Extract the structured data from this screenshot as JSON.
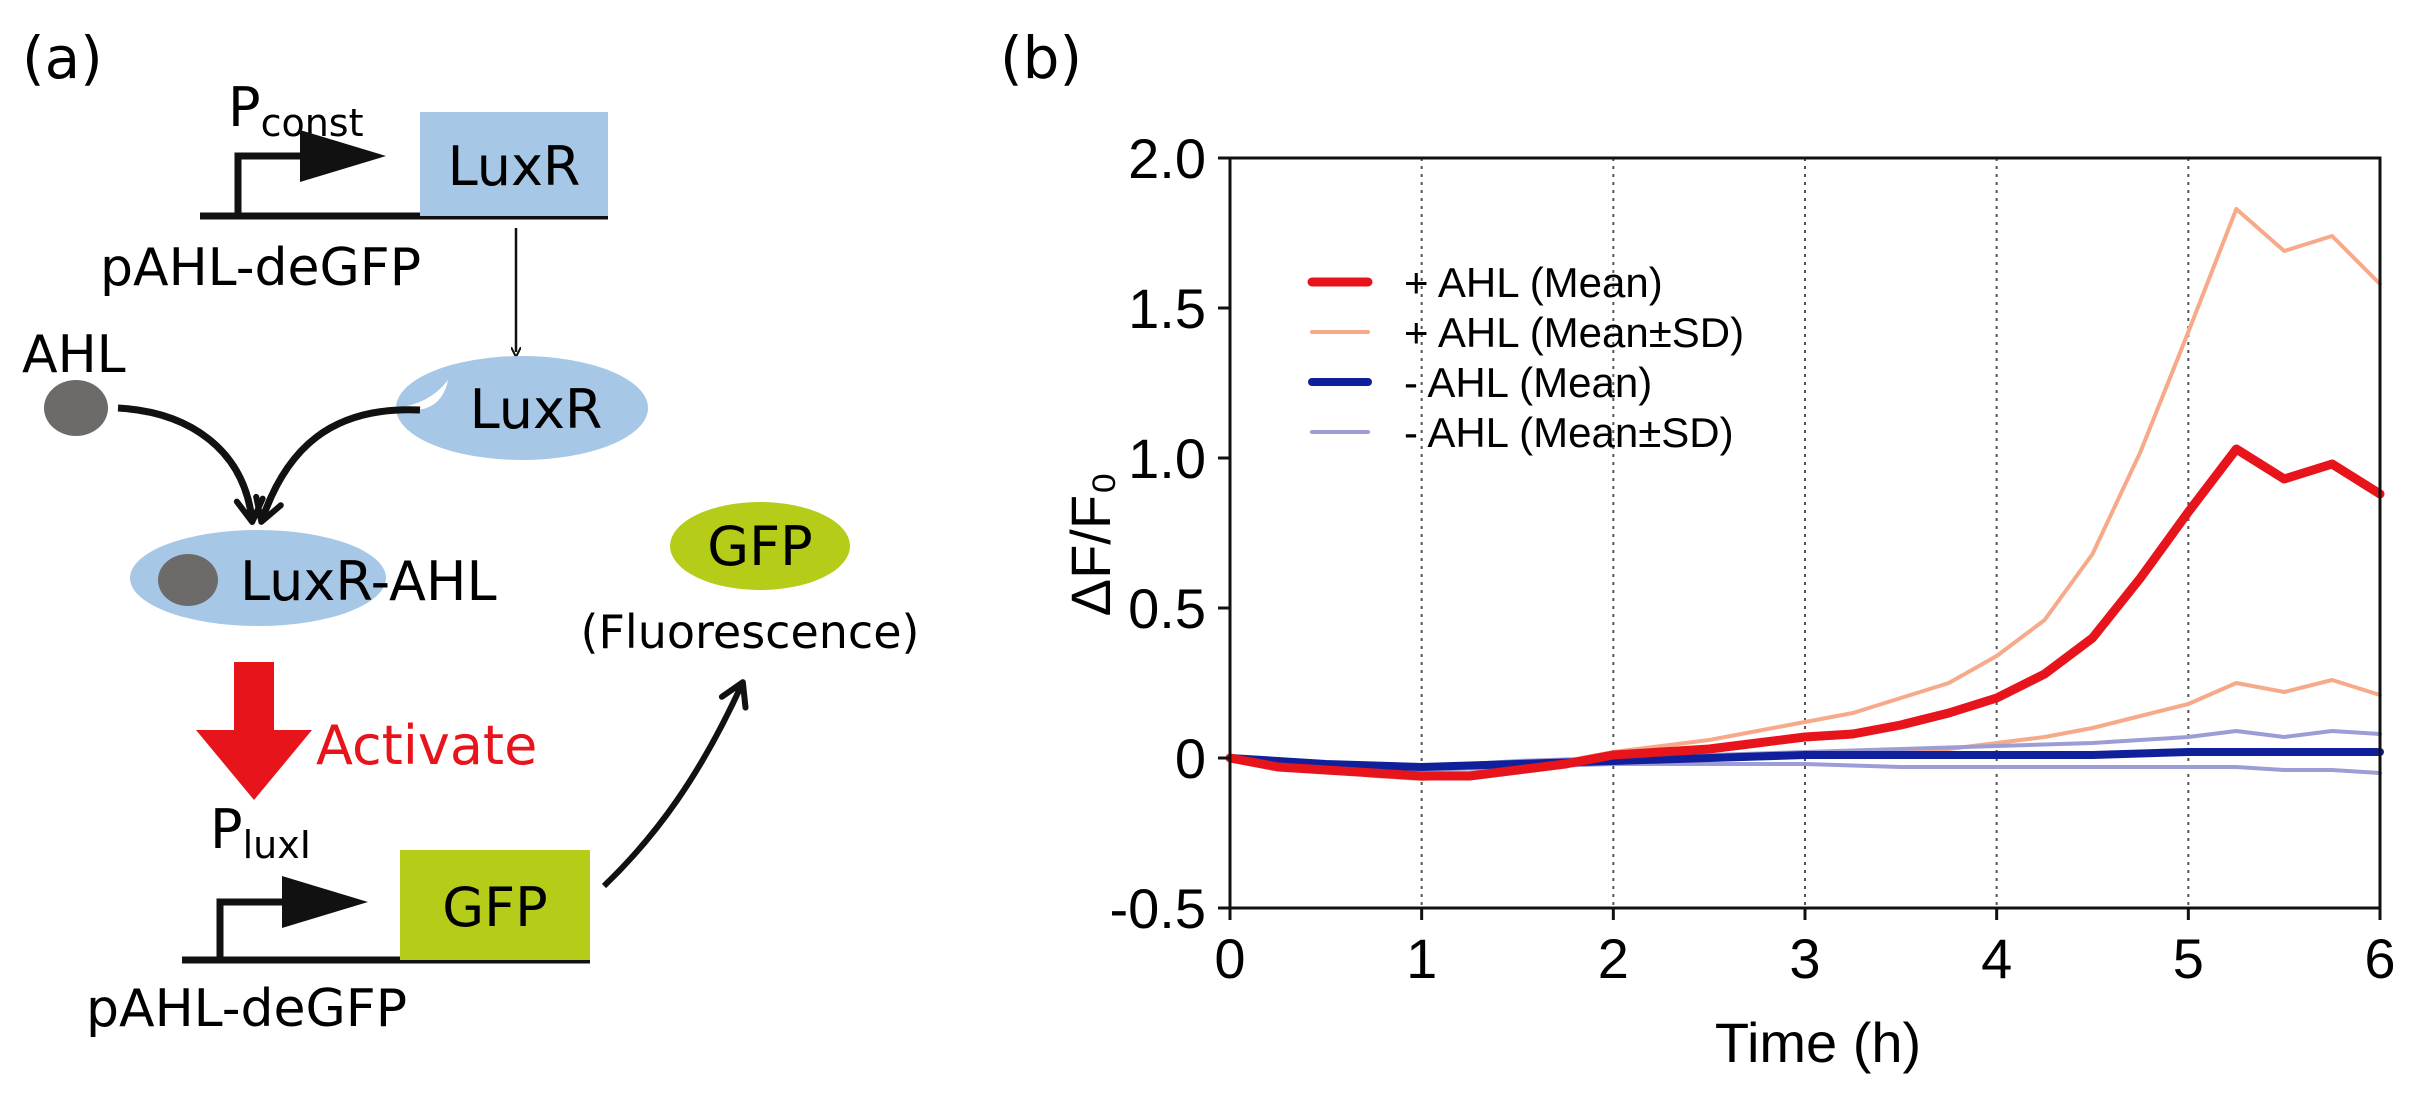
{
  "panel_a": {
    "label": "(a)",
    "top_promoter": {
      "main": "P",
      "sub": "const"
    },
    "top_gene": "LuxR",
    "top_plasmid": "pAHL-deGFP",
    "ahl": "AHL",
    "luxr_protein": "LuxR",
    "complex": "LuxR-AHL",
    "activate": "Activate",
    "bottom_promoter": {
      "main": "P",
      "sub": "luxI"
    },
    "bottom_gene": "GFP",
    "bottom_plasmid": "pAHL-deGFP",
    "gfp_protein": "GFP",
    "fluorescence": "(Fluorescence)",
    "colors": {
      "luxr": "#a7c7e7",
      "gfp": "#b5cc18",
      "ahl": "#6d6a6a",
      "activate": "#e8141c"
    }
  },
  "chart_data": {
    "type": "line",
    "panel_label": "(b)",
    "title": "",
    "xlabel": "Time (h)",
    "ylabel": "ΔF/F₀",
    "xlim": [
      0,
      6
    ],
    "ylim": [
      -0.5,
      2.0
    ],
    "xticks": [
      0,
      1,
      2,
      3,
      4,
      5,
      6
    ],
    "xtick_labels": [
      "0",
      "1",
      "2",
      "3",
      "4",
      "5",
      "6"
    ],
    "yticks": [
      -0.5,
      0,
      0.5,
      1.0,
      1.5,
      2.0
    ],
    "ytick_labels": [
      "-0.5",
      "0",
      "0.5",
      "1.0",
      "1.5",
      "2.0"
    ],
    "vgrid": [
      1,
      2,
      3,
      4,
      5
    ],
    "legend_position": "upper-left",
    "series": [
      {
        "name": "+ AHL (Mean±SD)",
        "kind": "upper",
        "color": "#f6aa8a",
        "width": 4,
        "x": [
          0,
          0.25,
          0.5,
          0.75,
          1,
          1.25,
          1.5,
          1.75,
          2,
          2.25,
          2.5,
          2.75,
          3,
          3.25,
          3.5,
          3.75,
          4,
          4.25,
          4.5,
          4.75,
          5,
          5.25,
          5.5,
          5.75,
          6
        ],
        "y": [
          0,
          -0.03,
          -0.04,
          -0.05,
          -0.05,
          -0.05,
          -0.03,
          -0.01,
          0.02,
          0.04,
          0.06,
          0.09,
          0.12,
          0.15,
          0.2,
          0.25,
          0.34,
          0.46,
          0.68,
          1.02,
          1.42,
          1.83,
          1.69,
          1.74,
          1.58
        ]
      },
      {
        "name": "+ AHL (Mean±SD)",
        "kind": "lower",
        "color": "#f6aa8a",
        "width": 4,
        "x": [
          0,
          0.25,
          0.5,
          0.75,
          1,
          1.25,
          1.5,
          1.75,
          2,
          2.25,
          2.5,
          2.75,
          3,
          3.25,
          3.5,
          3.75,
          4,
          4.25,
          4.5,
          4.75,
          5,
          5.25,
          5.5,
          5.75,
          6
        ],
        "y": [
          0,
          -0.03,
          -0.04,
          -0.06,
          -0.07,
          -0.06,
          -0.04,
          -0.02,
          0,
          0,
          0.01,
          0.01,
          0.01,
          0.02,
          0.02,
          0.03,
          0.05,
          0.07,
          0.1,
          0.14,
          0.18,
          0.25,
          0.22,
          0.26,
          0.21
        ]
      },
      {
        "name": "- AHL (Mean±SD)",
        "kind": "upper",
        "color": "#9c9cd6",
        "width": 4,
        "x": [
          0,
          0.5,
          1,
          1.5,
          2,
          2.5,
          3,
          3.5,
          4,
          4.5,
          5,
          5.25,
          5.5,
          5.75,
          6
        ],
        "y": [
          0,
          -0.02,
          -0.03,
          -0.01,
          0,
          0.01,
          0.02,
          0.03,
          0.04,
          0.05,
          0.07,
          0.09,
          0.07,
          0.09,
          0.08
        ]
      },
      {
        "name": "- AHL (Mean±SD)",
        "kind": "lower",
        "color": "#9c9cd6",
        "width": 4,
        "x": [
          0,
          0.5,
          1,
          1.5,
          2,
          2.5,
          3,
          3.5,
          4,
          4.5,
          5,
          5.25,
          5.5,
          5.75,
          6
        ],
        "y": [
          0,
          -0.02,
          -0.04,
          -0.03,
          -0.02,
          -0.02,
          -0.02,
          -0.03,
          -0.03,
          -0.03,
          -0.03,
          -0.03,
          -0.04,
          -0.04,
          -0.05
        ]
      },
      {
        "name": "- AHL (Mean)",
        "kind": "mean",
        "color": "#10209a",
        "width": 8,
        "x": [
          0,
          0.5,
          1,
          1.5,
          2,
          2.5,
          3,
          3.5,
          4,
          4.5,
          5,
          5.5,
          6
        ],
        "y": [
          0,
          -0.02,
          -0.03,
          -0.02,
          -0.01,
          0,
          0.01,
          0.01,
          0.01,
          0.01,
          0.02,
          0.02,
          0.02
        ]
      },
      {
        "name": "+ AHL (Mean)",
        "kind": "mean",
        "color": "#e8141c",
        "width": 9,
        "x": [
          0,
          0.25,
          0.5,
          0.75,
          1,
          1.25,
          1.5,
          1.75,
          2,
          2.25,
          2.5,
          2.75,
          3,
          3.25,
          3.5,
          3.75,
          4,
          4.25,
          4.5,
          4.75,
          5,
          5.25,
          5.5,
          5.75,
          6
        ],
        "y": [
          0,
          -0.03,
          -0.04,
          -0.05,
          -0.06,
          -0.06,
          -0.04,
          -0.02,
          0.01,
          0.02,
          0.03,
          0.05,
          0.07,
          0.08,
          0.11,
          0.15,
          0.2,
          0.28,
          0.4,
          0.6,
          0.82,
          1.03,
          0.93,
          0.98,
          0.88
        ]
      }
    ],
    "legend": [
      {
        "label": "+ AHL (Mean)",
        "color": "#e8141c",
        "width": 9
      },
      {
        "label": "+ AHL (Mean±SD)",
        "color": "#f6aa8a",
        "width": 4
      },
      {
        "label": " - AHL (Mean)",
        "color": "#10209a",
        "width": 8
      },
      {
        "label": " - AHL (Mean±SD)",
        "color": "#9c9cd6",
        "width": 4
      }
    ]
  }
}
